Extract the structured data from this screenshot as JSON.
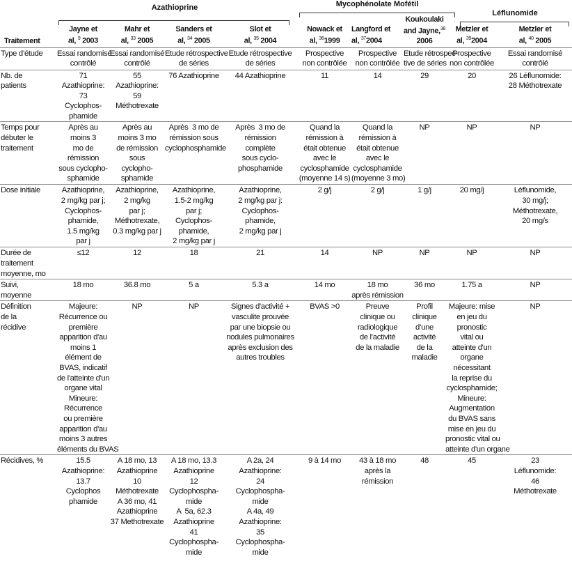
{
  "groups": [
    {
      "label": "Azathioprine"
    },
    {
      "label": "Mycophénolate Mofétil"
    },
    {
      "label": "Léflunomide"
    }
  ],
  "header": {
    "row_label": "Traitement",
    "studies": [
      {
        "line1": "Jayne et",
        "pre": "al, ",
        "ref": "9",
        "year": " 2003"
      },
      {
        "line1": "Mahr et",
        "pre": "al, ",
        "ref": "33",
        "year": " 2005"
      },
      {
        "line1": "Sanders et",
        "pre": "al, ",
        "ref": "34",
        "year": " 2005"
      },
      {
        "line1": "Slot et",
        "pre": "al, ",
        "ref": "35",
        "year": " 2004"
      },
      {
        "line1": "Nowack et",
        "pre": "al, ",
        "ref": "36",
        "year": "1999"
      },
      {
        "line1": "Langford et",
        "pre": "al, ",
        "ref": "37",
        "year": "2004"
      },
      {
        "line1": "Koukoulaki\nand Jayne,",
        "pre": "",
        "ref": "38",
        "year": "\n2006"
      },
      {
        "line1": "Metzler et",
        "pre": "al, ",
        "ref": "39",
        "year": "2004"
      },
      {
        "line1": "Metzler et",
        "pre": "al, ",
        "ref": "40",
        "year": " 2005"
      }
    ]
  },
  "rows": [
    {
      "label": "Type d’étude",
      "cells": [
        "Essai randomisé\ncontrôlé",
        "Essai randomisé\ncontrôlé",
        "Etude rétrospective\nde séries",
        "Etude rétrospective\nde séries",
        "Prospective\nnon contrôlée",
        "Prospective\nnon contrôlée",
        "Etude rétrospec-\ntive de séries",
        "Prospective\nnon contrôlée",
        "Essai randomisé\ncontrôlé"
      ]
    },
    {
      "label": "Nb. de\npatients",
      "cells": [
        "71\nAzathioprine:\n73\nCyclophos-\nphamide",
        "55\nAzathioprine:\n59\nMéthotrexate",
        "76 Azathioprine",
        "44 Azathioprine",
        "11",
        "14",
        "29",
        "20",
        "26 Léflunomide:\n28 Méthotrexate"
      ]
    },
    {
      "label": "Temps pour\ndébuter le\ntraitement",
      "cells": [
        "Après au\nmoins 3\nmo de\nrémission\nsous cyclopho-\nsphamide",
        "Après au\nmoins 3 mo\nde rémission\nsous\ncyclopho-\nsphamide",
        "Après  3 mo de\nrémission sous\ncyclophosphamide",
        "Après  3 mo de\nrémission\ncomplète\nsous cyclo-\nphosphamide",
        "Quand la\nrémission à\nétait obtenue\navec le\ncyclosphamide\n(moyenne 14 s)",
        "Quand la\nrémission à\nétait obtenue\navec le\ncyclosphamide\n(moyenne 3 mo)",
        "NP",
        "NP",
        "NP"
      ]
    },
    {
      "label": "Dose initiale",
      "cells": [
        "Azathioprine,\n2 mg/kg par j;\nCyclophos-\nphamide,\n1.5 mg/kg\npar j",
        "Azathioprine,\n2 mg/kg\npar j;\nMéthotrexate,\n0.3 mg/kg par j",
        "Azathioprine,\n1.5-2 mg/kg\npar j;\nCyclophos-\nphamide,\n2 mg/kg par j",
        "Azathioprine,\n2 mg/kg par j:\nCyclophos-\nphamide,\n2 mg/kg par j",
        "2 g/j",
        "2 g/j",
        "1 g/j",
        "20 mg/j",
        "Léflunomide,\n30 mg/j;\nMéthotrexate,\n20 mg/s"
      ]
    },
    {
      "label": "Durée de\ntraitement\nmoyenne, mo",
      "cells": [
        "≤12",
        "12",
        "18",
        "21",
        "14",
        "NP",
        "NP",
        "NP",
        "NP"
      ]
    },
    {
      "label": "Suivi,\nmoyenne",
      "cells": [
        "18 mo",
        "36.8 mo",
        "5 a",
        "5.3 a",
        "14 mo",
        "18 mo\naprès rémission",
        "36 mo",
        "1.75 a",
        "NP"
      ]
    },
    {
      "label": "Définition\nde la\nrécidive",
      "cells": [
        "Majeure:\nRécurrence ou\npremière\napparition d'au\nmoins 1\nélément de\nBVAS, indicatif\nde l'atteinte d'un\norgane vital\nMineure:\nRécurrence\nou première\napparition d'au\nmoins 3 autres\néléments du BVAS",
        "NP",
        "NP",
        "Signes d'activité +\nvasculite prouvée\npar une biopsie ou\nnodules pulmonaires\naprès exclusion des\nautres troubles",
        "BVAS >0",
        "Preuve\nclinique ou\nradiologique\nde l’activité\nde la maladie",
        "Profil\nclinique\nd’une\nactivité\nde la\nmaladie",
        "Majeure: mise\nen jeu du\npronostic\nvital ou\natteinte d'un\norgane\nnécessitant\nla reprise du\ncyclosphamide;\nMineure:\nAugmentation\ndu BVAS sans\nmise en jeu du\npronostic vital ou\natteinte d'un organe",
        "NP"
      ]
    },
    {
      "label": "Récidives, %",
      "cells": [
        "15.5\nAzathioprine:\n13.7\nCyclophos\nphamide",
        "A 18 mo, 13\nAzathioprine\n10\nMéthotrexate\nA 36 mo, 41\nAzathioprine\n37 Methotrexate",
        "A 18 mo, 13.3\nAzathioprine\n12\nCyclophospha-\nmide\nA  5a, 62.3\nAzathioprine\n41\nCyclophospha-\nmide",
        "A 2a, 24\nAzathioprine:\n24\nCyclophospha-\nmide\nA 4a, 49\nAzathioprine:\n35\nCyclophospha-\nmide",
        "9 à 14 mo",
        "43 à 18 mo\naprès la\nrémission",
        "48",
        "45",
        "23\nLéflunomide:\n46\nMéthotrexate"
      ]
    }
  ]
}
